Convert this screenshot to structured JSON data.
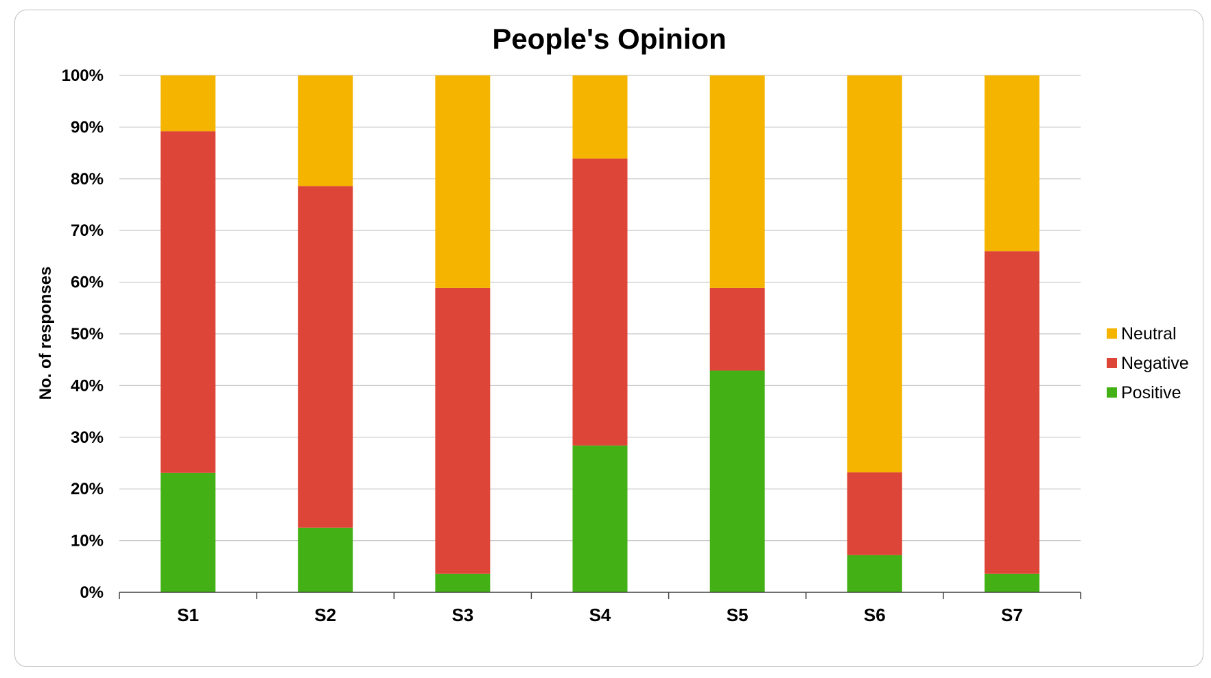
{
  "chart_data": {
    "type": "bar",
    "stacked": true,
    "title": "People's Opinion",
    "xlabel": "",
    "ylabel": "No. of responses",
    "categories": [
      "S1",
      "S2",
      "S3",
      "S4",
      "S5",
      "S6",
      "S7"
    ],
    "y_ticks": [
      "0%",
      "10%",
      "20%",
      "30%",
      "40%",
      "50%",
      "60%",
      "70%",
      "80%",
      "90%",
      "100%"
    ],
    "ylim": [
      0,
      100
    ],
    "grid": true,
    "legend_position": "right",
    "series": [
      {
        "name": "Positive",
        "color": "#43b016",
        "values": [
          23.1,
          12.5,
          3.6,
          28.4,
          42.9,
          7.2,
          3.6
        ]
      },
      {
        "name": "Negative",
        "color": "#dc4538",
        "values": [
          66.1,
          66.1,
          55.3,
          55.5,
          16.0,
          16.0,
          62.4
        ]
      },
      {
        "name": "Neutral",
        "color": "#f4b400",
        "values": [
          10.8,
          21.4,
          41.1,
          16.1,
          41.1,
          76.8,
          34.0
        ]
      }
    ],
    "legend_order": [
      "Neutral",
      "Negative",
      "Positive"
    ]
  }
}
